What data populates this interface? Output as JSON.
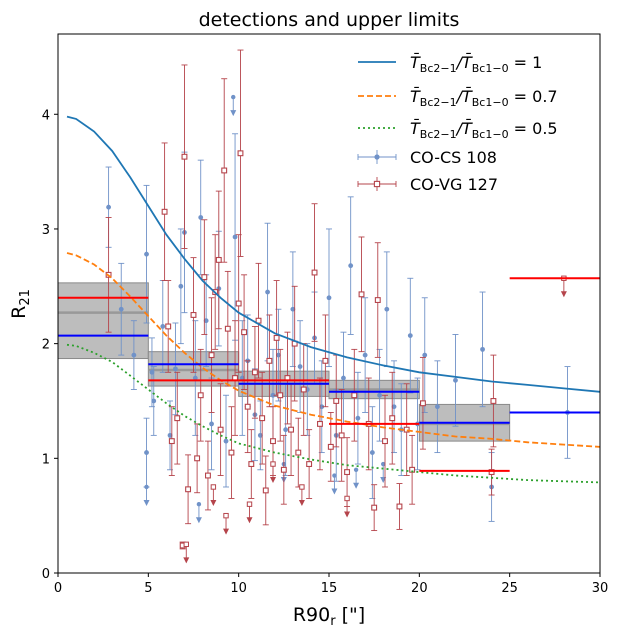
{
  "chart_data": {
    "type": "scatter",
    "title": "detections and upper limits",
    "xlabel": "R90",
    "xlabel_sub": "r",
    "xlabel_suffix": " [\"]",
    "ylabel": "R",
    "ylabel_sub": "21",
    "xlim": [
      0,
      30
    ],
    "ylim": [
      0,
      4.7
    ],
    "xticks": [
      0,
      5,
      10,
      15,
      20,
      25,
      30
    ],
    "yticks": [
      0,
      1,
      2,
      3,
      4
    ],
    "grid": false,
    "legend_position": "top-right",
    "model_curves": [
      {
        "name": "T̄Bc2−1/T̄Bc1−0 = 1",
        "label_main": "T̄",
        "label_mid": "/T̄",
        "label_eq": " = 1",
        "color": "#1f77b4",
        "style": "solid",
        "x": [
          0.5,
          1,
          2,
          3,
          4,
          5,
          6,
          7,
          8,
          9,
          10,
          12,
          14,
          16,
          18,
          20,
          22,
          24,
          26,
          28,
          30
        ],
        "y": [
          3.98,
          3.96,
          3.85,
          3.68,
          3.45,
          3.2,
          2.95,
          2.74,
          2.55,
          2.4,
          2.27,
          2.09,
          1.97,
          1.88,
          1.81,
          1.75,
          1.71,
          1.67,
          1.64,
          1.61,
          1.58
        ]
      },
      {
        "name": "T̄Bc2−1/T̄Bc1−0 = 0.7",
        "label_main": "T̄",
        "label_mid": "/T̄",
        "label_eq": " = 0.7",
        "color": "#ff7f0e",
        "style": "dashed",
        "x": [
          0.5,
          1,
          2,
          3,
          4,
          5,
          6,
          7,
          8,
          9,
          10,
          12,
          14,
          16,
          18,
          20,
          22,
          24,
          26,
          28,
          30
        ],
        "y": [
          2.79,
          2.77,
          2.69,
          2.57,
          2.41,
          2.24,
          2.07,
          1.92,
          1.79,
          1.68,
          1.59,
          1.46,
          1.38,
          1.32,
          1.27,
          1.23,
          1.19,
          1.17,
          1.14,
          1.12,
          1.1
        ]
      },
      {
        "name": "T̄Bc2−1/T̄Bc1−0 = 0.5",
        "label_main": "T̄",
        "label_mid": "/T̄",
        "label_eq": " = 0.5",
        "color": "#2ca02c",
        "style": "dotted",
        "x": [
          0.5,
          1,
          2,
          3,
          4,
          5,
          6,
          7,
          8,
          9,
          10,
          12,
          14,
          16,
          18,
          20,
          22,
          24,
          26,
          28,
          30
        ],
        "y": [
          1.99,
          1.98,
          1.92,
          1.84,
          1.72,
          1.6,
          1.48,
          1.37,
          1.28,
          1.2,
          1.13,
          1.05,
          0.99,
          0.94,
          0.91,
          0.88,
          0.85,
          0.83,
          0.81,
          0.8,
          0.79
        ]
      }
    ],
    "legend_sub": "Bc2−1",
    "legend_sub2": "Bc1−0",
    "series": [
      {
        "name": "CO-CS 108",
        "color": "#7092c8",
        "marker": "filled-circle",
        "points": [
          [
            2.8,
            3.19,
            0.35
          ],
          [
            3.5,
            2.3,
            0.4
          ],
          [
            4.2,
            1.9,
            0.3
          ],
          [
            4.9,
            2.78,
            0.6
          ],
          [
            4.9,
            1.05,
            0.3
          ],
          [
            5.2,
            1.75,
            0.3
          ],
          [
            5.3,
            1.5,
            0.3
          ],
          [
            5.8,
            2.15,
            0.4
          ],
          [
            6.2,
            1.2,
            0.3
          ],
          [
            6.5,
            1.78,
            0.4
          ],
          [
            6.8,
            2.5,
            0.5
          ],
          [
            7.0,
            2.97,
            0.7
          ],
          [
            7.6,
            1.7,
            0.5
          ],
          [
            7.9,
            3.1,
            0.5
          ],
          [
            8.2,
            2.2,
            0.4
          ],
          [
            8.5,
            1.3,
            0.4
          ],
          [
            8.9,
            2.48,
            0.5
          ],
          [
            9.3,
            1.15,
            0.4
          ],
          [
            9.8,
            2.93,
            0.9
          ],
          [
            10.2,
            1.7,
            0.5
          ],
          [
            10.5,
            1.85,
            0.4
          ],
          [
            10.9,
            1.38,
            0.4
          ],
          [
            11.2,
            1.2,
            0.3
          ],
          [
            11.6,
            2.45,
            0.6
          ],
          [
            11.9,
            1.55,
            0.4
          ],
          [
            12.2,
            1.9,
            0.4
          ],
          [
            12.6,
            1.25,
            0.4
          ],
          [
            13.0,
            2.3,
            0.5
          ],
          [
            13.4,
            1.8,
            0.4
          ],
          [
            13.8,
            1.6,
            0.4
          ],
          [
            14.2,
            2.05,
            0.4
          ],
          [
            14.6,
            1.45,
            0.4
          ],
          [
            15.0,
            2.4,
            0.6
          ],
          [
            15.4,
            1.2,
            0.4
          ],
          [
            15.8,
            1.7,
            0.4
          ],
          [
            16.2,
            2.68,
            0.6
          ],
          [
            16.6,
            1.35,
            0.4
          ],
          [
            17.0,
            1.9,
            0.5
          ],
          [
            17.4,
            1.05,
            0.4
          ],
          [
            17.8,
            1.55,
            0.4
          ],
          [
            18.2,
            2.3,
            0.5
          ],
          [
            18.6,
            1.45,
            0.4
          ],
          [
            19.0,
            1.25,
            0.4
          ],
          [
            19.5,
            2.07,
            0.5
          ],
          [
            19.9,
            1.3,
            0.4
          ],
          [
            20.3,
            1.9,
            0.5
          ],
          [
            21.0,
            1.45,
            0.4
          ],
          [
            22.0,
            1.68,
            0.4
          ],
          [
            23.5,
            1.95,
            0.5
          ],
          [
            24.0,
            0.75,
            0.3
          ],
          [
            28.2,
            1.4,
            0.4
          ]
        ],
        "limits": [
          [
            4.9,
            0.75
          ],
          [
            7.8,
            0.6
          ],
          [
            9.7,
            4.15
          ],
          [
            12.5,
            0.95
          ],
          [
            15.3,
            0.85
          ],
          [
            16.5,
            0.9
          ],
          [
            18.0,
            0.95
          ]
        ]
      },
      {
        "name": "CO-VG 127",
        "color": "#b5444b",
        "marker": "open-square",
        "points": [
          [
            2.8,
            2.6,
            0.5
          ],
          [
            5.9,
            3.15,
            0.6
          ],
          [
            6.1,
            2.15,
            0.4
          ],
          [
            6.3,
            1.15,
            0.3
          ],
          [
            6.6,
            1.35,
            0.4
          ],
          [
            7.0,
            3.63,
            0.8
          ],
          [
            7.2,
            0.73,
            0.3
          ],
          [
            7.5,
            2.25,
            0.5
          ],
          [
            7.7,
            1.0,
            0.3
          ],
          [
            7.9,
            1.55,
            0.4
          ],
          [
            8.1,
            2.58,
            0.5
          ],
          [
            8.3,
            0.85,
            0.3
          ],
          [
            8.5,
            1.9,
            0.5
          ],
          [
            8.7,
            2.45,
            0.5
          ],
          [
            8.9,
            2.73,
            0.6
          ],
          [
            9.0,
            1.25,
            0.4
          ],
          [
            9.2,
            3.51,
            0.8
          ],
          [
            9.4,
            2.13,
            0.5
          ],
          [
            9.6,
            1.05,
            0.4
          ],
          [
            9.8,
            1.7,
            0.5
          ],
          [
            10.0,
            2.35,
            0.6
          ],
          [
            10.1,
            3.66,
            0.9
          ],
          [
            10.3,
            2.1,
            0.5
          ],
          [
            10.5,
            1.45,
            0.4
          ],
          [
            10.7,
            0.95,
            0.3
          ],
          [
            10.9,
            1.75,
            0.4
          ],
          [
            11.1,
            2.2,
            0.5
          ],
          [
            11.3,
            1.35,
            0.4
          ],
          [
            11.5,
            0.72,
            0.3
          ],
          [
            11.7,
            1.85,
            0.4
          ],
          [
            11.9,
            1.15,
            0.3
          ],
          [
            12.1,
            2.05,
            0.5
          ],
          [
            12.3,
            1.55,
            0.4
          ],
          [
            12.5,
            0.9,
            0.3
          ],
          [
            12.7,
            1.7,
            0.4
          ],
          [
            12.9,
            1.25,
            0.4
          ],
          [
            13.1,
            2.0,
            0.5
          ],
          [
            13.3,
            1.05,
            0.3
          ],
          [
            13.6,
            1.6,
            0.4
          ],
          [
            13.9,
            0.95,
            0.3
          ],
          [
            14.2,
            2.62,
            0.6
          ],
          [
            14.5,
            1.3,
            0.4
          ],
          [
            14.8,
            1.85,
            0.4
          ],
          [
            15.1,
            1.1,
            0.3
          ],
          [
            15.4,
            1.5,
            0.4
          ],
          [
            15.7,
            1.2,
            0.4
          ],
          [
            16.0,
            0.88,
            0.3
          ],
          [
            16.4,
            1.55,
            0.4
          ],
          [
            16.8,
            2.43,
            0.5
          ],
          [
            17.2,
            1.3,
            0.4
          ],
          [
            17.5,
            0.57,
            0.2
          ],
          [
            17.7,
            2.38,
            0.5
          ],
          [
            18.1,
            1.15,
            0.4
          ],
          [
            18.5,
            1.35,
            0.4
          ],
          [
            18.9,
            0.58,
            0.2
          ],
          [
            19.3,
            1.25,
            0.4
          ],
          [
            19.6,
            0.9,
            0.3
          ],
          [
            20.2,
            1.48,
            0.4
          ],
          [
            24.1,
            1.5,
            0.4
          ],
          [
            24.0,
            0.88,
            0.2
          ],
          [
            6.9,
            0.24,
            0.03
          ]
        ],
        "limits": [
          [
            7.1,
            0.25
          ],
          [
            8.6,
            0.75
          ],
          [
            9.3,
            0.5
          ],
          [
            10.6,
            0.6
          ],
          [
            11.9,
            0.95
          ],
          [
            13.5,
            0.75
          ],
          [
            16.0,
            0.65
          ],
          [
            28.0,
            2.57
          ]
        ]
      }
    ],
    "bin_bands": [
      {
        "x0": 0.0,
        "x1": 5.0,
        "lo": 1.87,
        "hi": 2.53,
        "mid": 2.27
      },
      {
        "x0": 5.0,
        "x1": 10.0,
        "lo": 1.63,
        "hi": 1.93,
        "mid": 1.77
      },
      {
        "x0": 10.0,
        "x1": 15.0,
        "lo": 1.54,
        "hi": 1.76,
        "mid": 1.65
      },
      {
        "x0": 15.0,
        "x1": 20.0,
        "lo": 1.52,
        "hi": 1.68,
        "mid": 1.6
      },
      {
        "x0": 20.0,
        "x1": 25.0,
        "lo": 1.15,
        "hi": 1.47,
        "mid": 1.3
      }
    ],
    "bin_medians_cs": [
      {
        "x0": 0.0,
        "x1": 5.0,
        "y": 2.07
      },
      {
        "x0": 5.0,
        "x1": 10.0,
        "y": 1.82
      },
      {
        "x0": 10.0,
        "x1": 15.0,
        "y": 1.65
      },
      {
        "x0": 15.0,
        "x1": 20.0,
        "y": 1.58
      },
      {
        "x0": 20.0,
        "x1": 25.0,
        "y": 1.31
      },
      {
        "x0": 25.0,
        "x1": 30.0,
        "y": 1.4
      }
    ],
    "bin_medians_vg": [
      {
        "x0": 0.0,
        "x1": 5.0,
        "y": 2.4
      },
      {
        "x0": 5.0,
        "x1": 10.0,
        "y": 1.68
      },
      {
        "x0": 10.0,
        "x1": 15.0,
        "y": 1.68
      },
      {
        "x0": 15.0,
        "x1": 20.0,
        "y": 1.3
      },
      {
        "x0": 20.0,
        "x1": 25.0,
        "y": 0.89
      },
      {
        "x0": 25.0,
        "x1": 30.0,
        "y": 2.57
      }
    ],
    "colors": {
      "band": "#bdbdbd",
      "band_mid": "#999999",
      "median_cs": "#0000ff",
      "median_vg": "#ff0000"
    }
  }
}
